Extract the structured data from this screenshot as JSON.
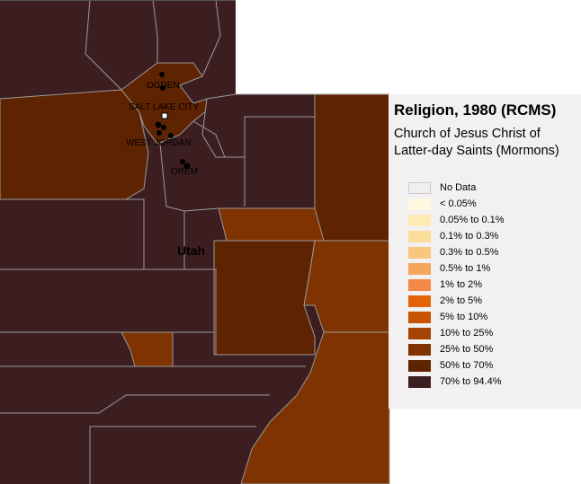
{
  "legend": {
    "title": "Religion, 1980 (RCMS)",
    "subtitle_line1": "Church of Jesus Christ of",
    "subtitle_line2": "Latter-day Saints (Mormons)",
    "items": [
      {
        "label": "No Data",
        "color": "#efefef"
      },
      {
        "label": "< 0.05%",
        "color": "#fff8e0"
      },
      {
        "label": "0.05% to 0.1%",
        "color": "#fdeab4"
      },
      {
        "label": "0.1% to 0.3%",
        "color": "#fbdc98"
      },
      {
        "label": "0.3% to 0.5%",
        "color": "#f8c67c"
      },
      {
        "label": "0.5% to 1%",
        "color": "#f6a55c"
      },
      {
        "label": "1% to 2%",
        "color": "#f48846"
      },
      {
        "label": "2% to 5%",
        "color": "#e46208"
      },
      {
        "label": "5% to 10%",
        "color": "#c85402"
      },
      {
        "label": "10% to 25%",
        "color": "#a54402"
      },
      {
        "label": "25% to 50%",
        "color": "#7e3300"
      },
      {
        "label": "50% to 70%",
        "color": "#5e2300"
      },
      {
        "label": "70% to 94.4%",
        "color": "#3c1e20"
      }
    ]
  },
  "map": {
    "state_label": "Utah",
    "cities": [
      "OGDEN",
      "SALT LAKE CITY",
      "WEST JORDAN",
      "OREM"
    ]
  }
}
